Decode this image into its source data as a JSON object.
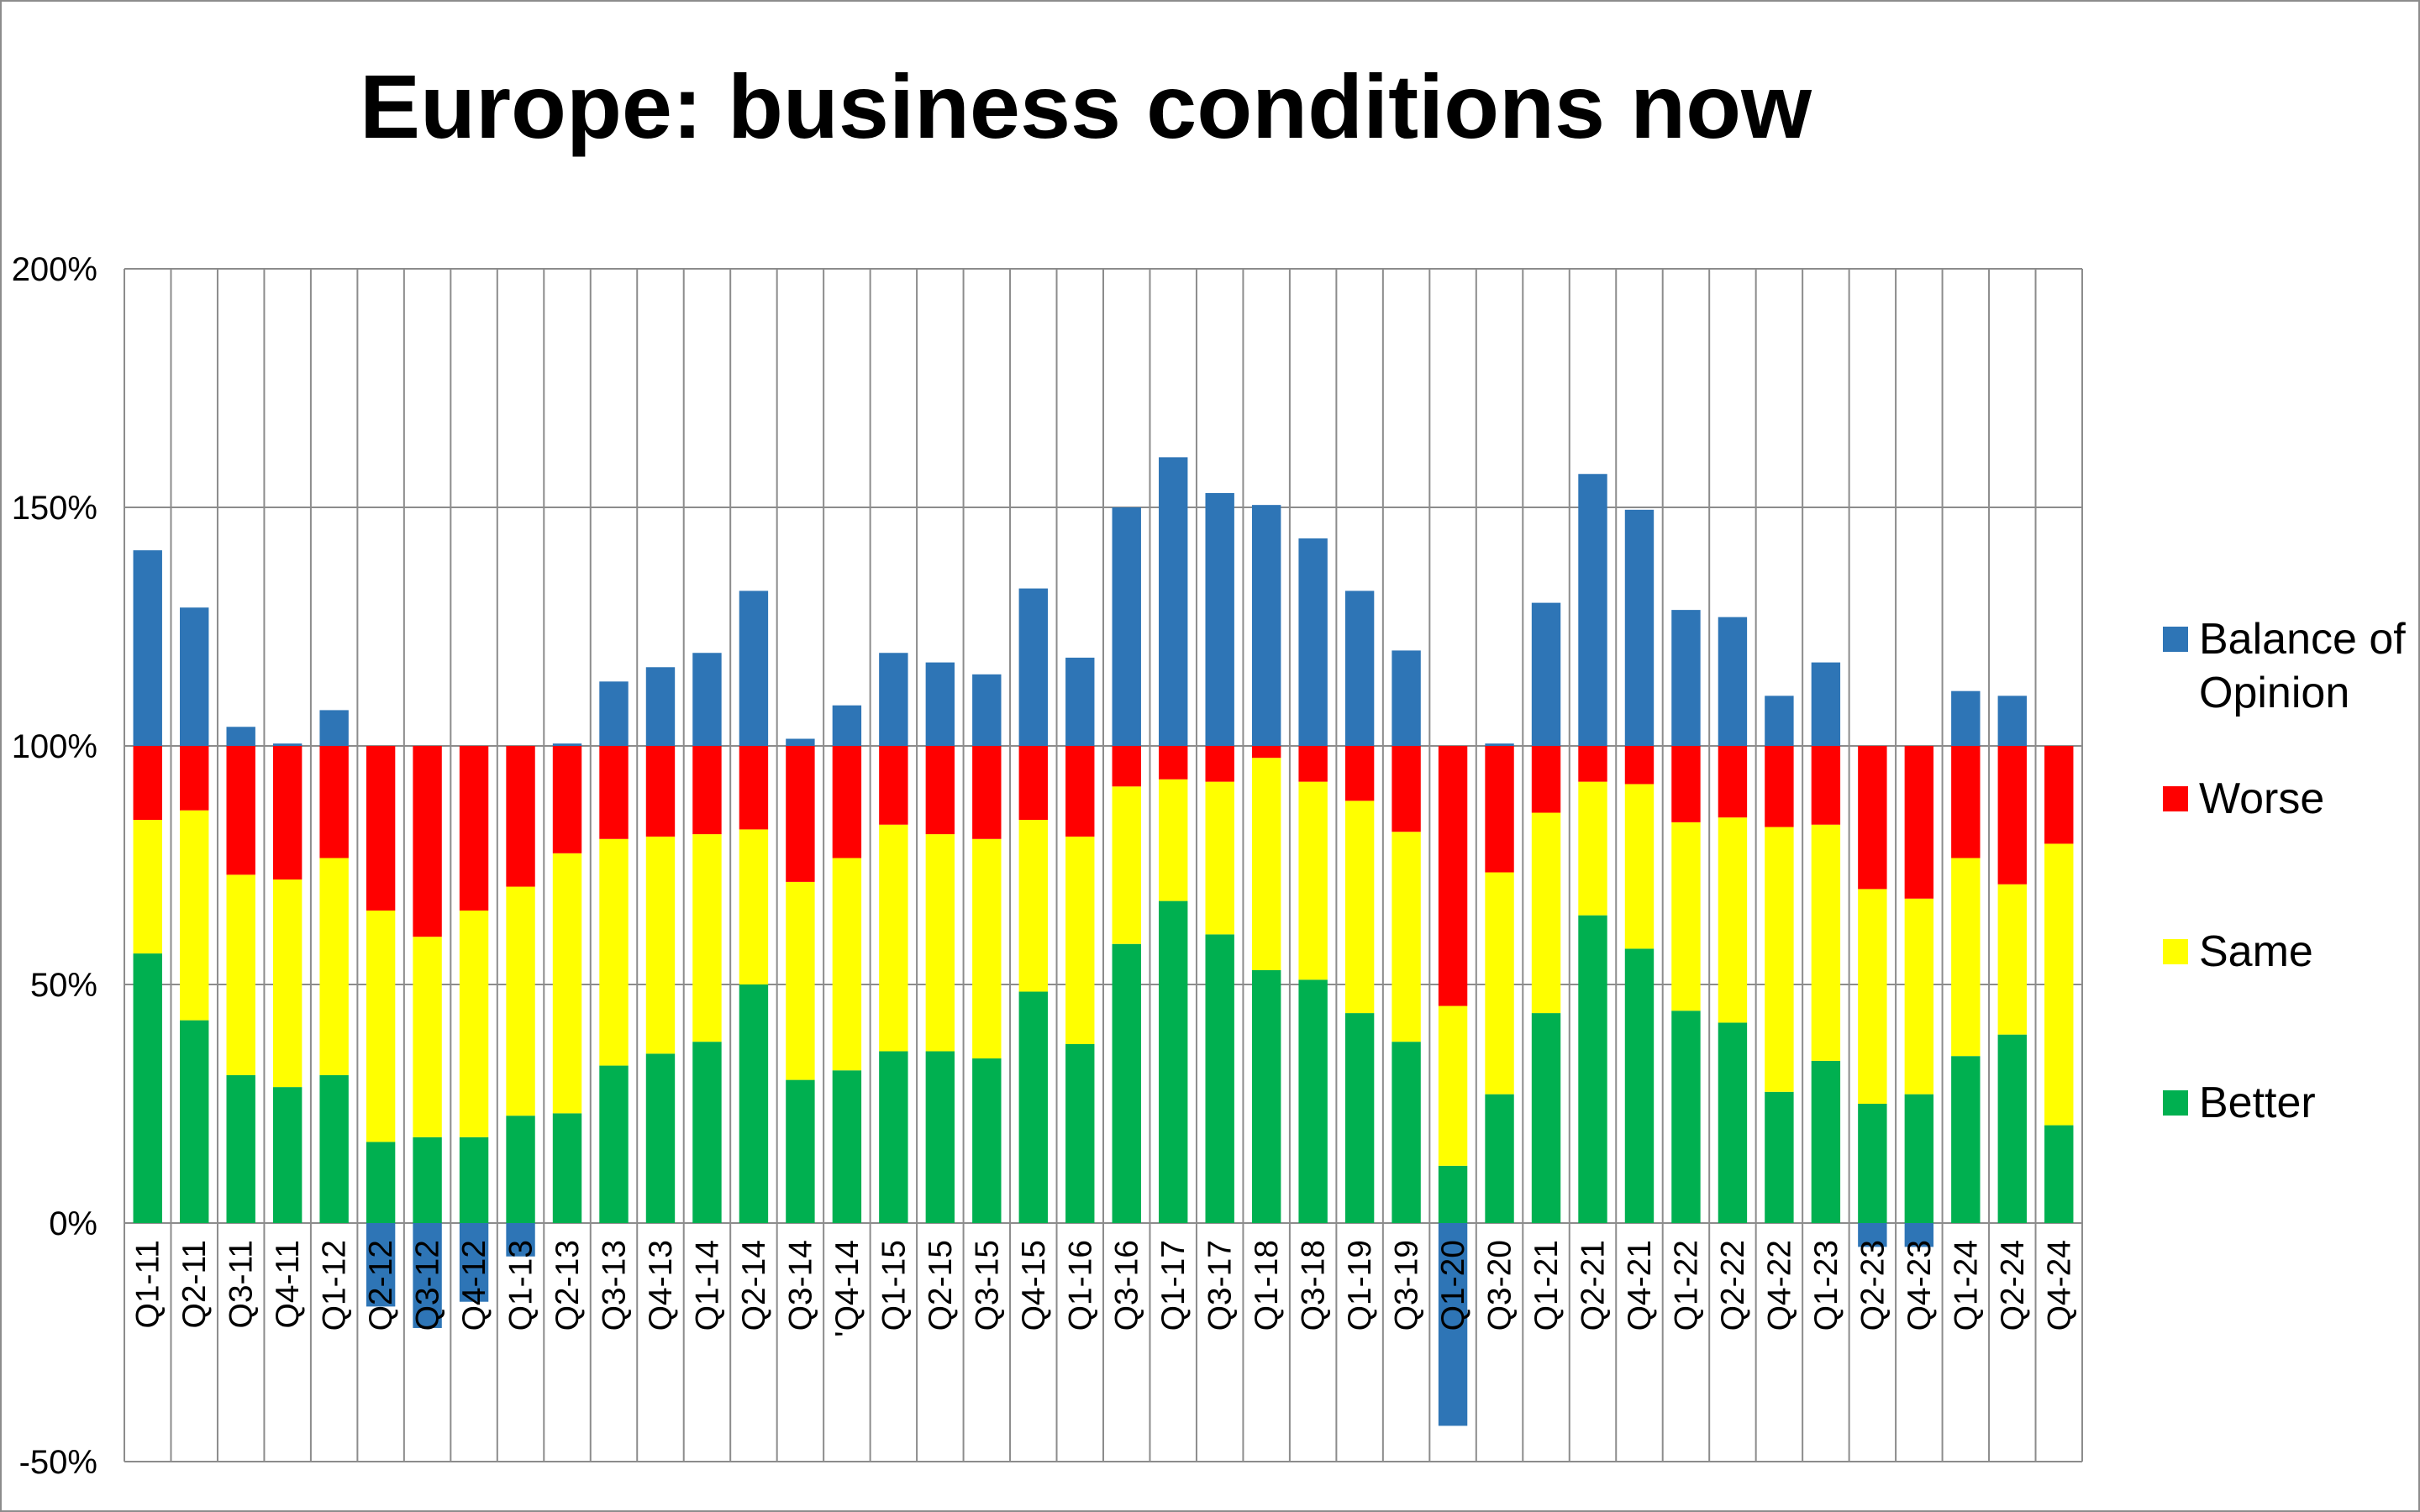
{
  "chart_data": {
    "type": "bar",
    "stacked": true,
    "title": "Europe: business conditions now",
    "xlabel": "",
    "ylabel": "",
    "ylim": [
      -0.5,
      2.0
    ],
    "y_ticks": [
      {
        "value": 2.0,
        "label": "200%"
      },
      {
        "value": 1.5,
        "label": "150%"
      },
      {
        "value": 1.0,
        "label": "100%"
      },
      {
        "value": 0.5,
        "label": "50%"
      },
      {
        "value": 0.0,
        "label": "0%"
      },
      {
        "value": -0.5,
        "label": "-50%"
      }
    ],
    "grid": true,
    "legend_position": "right",
    "categories": [
      "Q1-11",
      "Q2-11",
      "Q3-11",
      "Q4-11",
      "Q1-12",
      "Q2-12",
      "Q3-12",
      "Q4-12",
      "Q1-13",
      "Q2-13",
      "Q3-13",
      "Q4-13",
      "Q1-14",
      "Q2-14",
      "Q3-14",
      "'Q4-14",
      "Q1-15",
      "Q2-15",
      "Q3-15",
      "Q4-15",
      "Q1-16",
      "Q3-16",
      "Q1-17",
      "Q3-17",
      "Q1-18",
      "Q3-18",
      "Q1-19",
      "Q3-19",
      "Q1-20",
      "Q3-20",
      "Q1-21",
      "Q2-21",
      "Q4-21",
      "Q1-22",
      "Q2-22",
      "Q4-22",
      "Q1-23",
      "Q2-23",
      "Q4-23",
      "Q1-24",
      "Q2-24",
      "Q4-24"
    ],
    "series": [
      {
        "name": "Better",
        "color": "#00b050",
        "values": [
          0.565,
          0.425,
          0.31,
          0.285,
          0.31,
          0.17,
          0.18,
          0.18,
          0.225,
          0.23,
          0.33,
          0.355,
          0.38,
          0.5,
          0.3,
          0.32,
          0.36,
          0.36,
          0.345,
          0.485,
          0.375,
          0.585,
          0.675,
          0.605,
          0.53,
          0.51,
          0.44,
          0.38,
          0.12,
          0.27,
          0.44,
          0.645,
          0.575,
          0.445,
          0.42,
          0.275,
          0.34,
          0.25,
          0.27,
          0.35,
          0.395,
          0.205
        ]
      },
      {
        "name": "Same",
        "color": "#ffff00",
        "values": [
          0.28,
          0.44,
          0.42,
          0.435,
          0.455,
          0.485,
          0.42,
          0.475,
          0.48,
          0.545,
          0.475,
          0.455,
          0.435,
          0.325,
          0.415,
          0.445,
          0.475,
          0.455,
          0.46,
          0.36,
          0.435,
          0.33,
          0.255,
          0.32,
          0.445,
          0.415,
          0.445,
          0.44,
          0.335,
          0.465,
          0.42,
          0.28,
          0.345,
          0.395,
          0.43,
          0.555,
          0.495,
          0.45,
          0.41,
          0.415,
          0.315,
          0.59
        ]
      },
      {
        "name": "Worse",
        "color": "#ff0000",
        "values": [
          0.155,
          0.135,
          0.27,
          0.28,
          0.235,
          0.345,
          0.4,
          0.345,
          0.295,
          0.225,
          0.195,
          0.19,
          0.185,
          0.175,
          0.285,
          0.235,
          0.165,
          0.185,
          0.195,
          0.155,
          0.19,
          0.085,
          0.07,
          0.075,
          0.025,
          0.075,
          0.115,
          0.18,
          0.545,
          0.265,
          0.14,
          0.075,
          0.08,
          0.16,
          0.15,
          0.17,
          0.165,
          0.3,
          0.32,
          0.235,
          0.29,
          0.205
        ]
      },
      {
        "name": "Balance of Opinion",
        "color": "#2e75b6",
        "values": [
          0.41,
          0.29,
          0.04,
          0.005,
          0.075,
          -0.175,
          -0.22,
          -0.165,
          -0.07,
          0.005,
          0.135,
          0.165,
          0.195,
          0.325,
          0.015,
          0.085,
          0.195,
          0.175,
          0.15,
          0.33,
          0.185,
          0.5,
          0.605,
          0.53,
          0.505,
          0.435,
          0.325,
          0.2,
          -0.425,
          0.005,
          0.3,
          0.57,
          0.495,
          0.285,
          0.27,
          0.105,
          0.175,
          -0.05,
          -0.05,
          0.115,
          0.105,
          0.0
        ]
      }
    ],
    "legend": [
      {
        "series": "Balance of Opinion",
        "lines": [
          "Balance of",
          "Opinion"
        ]
      },
      {
        "series": "Worse",
        "lines": [
          "Worse"
        ]
      },
      {
        "series": "Same",
        "lines": [
          "Same"
        ]
      },
      {
        "series": "Better",
        "lines": [
          "Better"
        ]
      }
    ]
  }
}
